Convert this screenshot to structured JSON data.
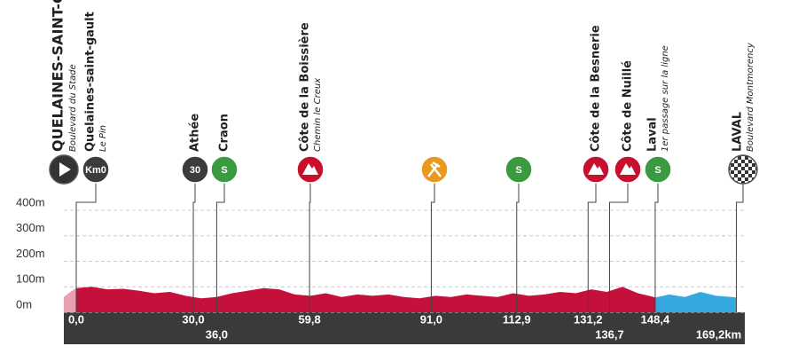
{
  "chart_data": {
    "type": "area",
    "x": [
      -3.2,
      -1.5,
      0,
      4,
      8,
      12,
      16,
      20,
      24,
      28,
      32,
      36,
      40,
      44,
      48,
      52,
      56,
      60,
      64,
      68,
      72,
      76,
      80,
      84,
      88,
      92,
      96,
      100,
      104,
      108,
      112,
      116,
      120,
      124,
      128,
      132,
      136,
      140,
      144,
      148,
      148.4,
      152,
      156,
      160,
      164,
      168,
      169.2
    ],
    "series": [
      {
        "color": "#e8a0ae",
        "values": [
          60,
          80,
          95,
          null,
          null,
          null,
          null,
          null,
          null,
          null,
          null,
          null,
          null,
          null,
          null,
          null,
          null,
          null,
          null,
          null,
          null,
          null,
          null,
          null,
          null,
          null,
          null,
          null,
          null,
          null,
          null,
          null,
          null,
          null,
          null,
          null,
          null,
          null,
          null,
          null,
          null,
          null,
          null,
          null,
          null,
          null,
          null
        ]
      },
      {
        "color": "#c4103a",
        "values": [
          null,
          null,
          95,
          100,
          90,
          92,
          85,
          75,
          80,
          65,
          55,
          60,
          75,
          85,
          95,
          90,
          70,
          65,
          75,
          60,
          70,
          65,
          70,
          60,
          55,
          65,
          60,
          70,
          65,
          60,
          75,
          65,
          70,
          80,
          75,
          90,
          80,
          100,
          75,
          60,
          58,
          null,
          null,
          null,
          null,
          null,
          null
        ]
      },
      {
        "color": "#35a8e0",
        "values": [
          null,
          null,
          null,
          null,
          null,
          null,
          null,
          null,
          null,
          null,
          null,
          null,
          null,
          null,
          null,
          null,
          null,
          null,
          null,
          null,
          null,
          null,
          null,
          null,
          null,
          null,
          null,
          null,
          null,
          null,
          null,
          null,
          null,
          null,
          null,
          null,
          null,
          null,
          null,
          null,
          58,
          70,
          60,
          80,
          65,
          60,
          58
        ]
      }
    ],
    "ylim": [
      0,
      400
    ],
    "yticks": [
      {
        "value": 0,
        "label": "0m"
      },
      {
        "value": 100,
        "label": "100m"
      },
      {
        "value": 200,
        "label": "200m"
      },
      {
        "value": 300,
        "label": "300m"
      },
      {
        "value": 400,
        "label": "400m"
      }
    ],
    "grid": true,
    "waypoints": [
      {
        "name": "QUELAINES-SAINT-GAULT",
        "note": "Boulevard du Stade",
        "icon": "start",
        "color": "#333333"
      },
      {
        "name": "Quelaines-saint-gault",
        "note": "Le Pin",
        "km": 0,
        "km_label": "0,0",
        "icon": "km",
        "icon_label": "Km0",
        "color": "#3c3c3c"
      },
      {
        "name": "Athée",
        "km": 30,
        "km_label": "30,0",
        "icon": "km",
        "icon_label": "30",
        "color": "#3c3c3c"
      },
      {
        "name": "Craon",
        "km": 36,
        "km_label": "36,0",
        "icon": "sprint",
        "icon_label": "S",
        "color": "#3a9a3f"
      },
      {
        "name": "Côte de la Boissière",
        "note": "Chemin le Creux",
        "km": 59.8,
        "km_label": "59,8",
        "icon": "climb",
        "color": "#c8102e"
      },
      {
        "km": 91,
        "km_label": "91,0",
        "icon": "feed",
        "color": "#e89a20"
      },
      {
        "km": 112.9,
        "km_label": "112,9",
        "icon": "sprint",
        "icon_label": "S",
        "color": "#3a9a3f"
      },
      {
        "name": "Côte de la Besnerie",
        "km": 131.2,
        "km_label": "131,2",
        "icon": "climb",
        "color": "#c8102e"
      },
      {
        "name": "Côte de Nuillé",
        "km": 136.7,
        "km_label": "136,7",
        "icon": "climb",
        "color": "#c8102e"
      },
      {
        "name": "Laval",
        "note": "1er passage sur la ligne",
        "km": 148.4,
        "km_label": "148,4",
        "icon": "sprint",
        "icon_label": "S",
        "color": "#3a9a3f"
      },
      {
        "name": "LAVAL",
        "note": "Boulevard Montmorency",
        "km": 169.2,
        "km_label": "169,2km",
        "icon": "finish",
        "color": "#333333"
      }
    ]
  }
}
